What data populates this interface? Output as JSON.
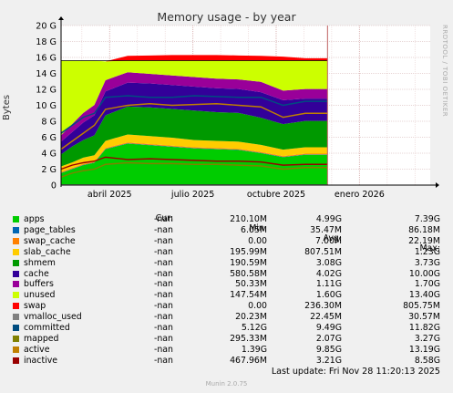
{
  "chart_data": {
    "type": "area",
    "title": "Memory usage - by year",
    "ylabel": "Bytes",
    "side_label": "RRDTOOL / TOBI OETIKER",
    "ylim": [
      0,
      20
    ],
    "yticks": [
      "0",
      "2 G",
      "4 G",
      "6 G",
      "8 G",
      "10 G",
      "12 G",
      "14 G",
      "16 G",
      "18 G",
      "20 G"
    ],
    "xticks": [
      {
        "label": "abril 2025",
        "month": 1.75
      },
      {
        "label": "julio 2025",
        "month": 4.75
      },
      {
        "label": "octubre 2025",
        "month": 7.75
      },
      {
        "label": "enero 2026",
        "month": 10.75
      }
    ],
    "x_range_months": [
      0,
      13.3
    ],
    "data_end_month": 9.6,
    "total_memory_line": 15.6,
    "series_stack": [
      {
        "name": "apps",
        "color": "#00cc00",
        "values": [
          1.5,
          2.0,
          2.5,
          2.8,
          4.5,
          5.2,
          5.0,
          4.8,
          4.6,
          4.5,
          4.4,
          4.0,
          3.5,
          3.8
        ]
      },
      {
        "name": "page_tables",
        "color": "#0066b3",
        "values": [
          0.05,
          0.05,
          0.05,
          0.05,
          0.05,
          0.05,
          0.05,
          0.05,
          0.05,
          0.05,
          0.05,
          0.05,
          0.05,
          0.05
        ]
      },
      {
        "name": "swap_cache",
        "color": "#ff8000",
        "values": [
          0.1,
          0.1,
          0.1,
          0.1,
          0.1,
          0.1,
          0.1,
          0.1,
          0.1,
          0.1,
          0.1,
          0.1,
          0.1,
          0.1
        ]
      },
      {
        "name": "slab_cache",
        "color": "#ffcc00",
        "values": [
          0.7,
          0.7,
          0.8,
          0.8,
          0.9,
          1.0,
          1.0,
          1.0,
          0.9,
          0.9,
          0.9,
          0.9,
          0.8,
          0.8
        ]
      },
      {
        "name": "shmem",
        "color": "#009900",
        "values": [
          1.5,
          2.0,
          2.2,
          2.5,
          3.2,
          3.5,
          3.6,
          3.6,
          3.7,
          3.6,
          3.6,
          3.4,
          3.2,
          3.3
        ]
      },
      {
        "name": "cache",
        "color": "#330099",
        "values": [
          1.6,
          1.8,
          2.2,
          2.5,
          3.0,
          3.0,
          3.0,
          3.0,
          3.0,
          3.0,
          3.0,
          3.2,
          3.0,
          2.8
        ]
      },
      {
        "name": "buffers",
        "color": "#990099",
        "values": [
          0.8,
          1.0,
          1.2,
          1.3,
          1.4,
          1.3,
          1.2,
          1.2,
          1.2,
          1.2,
          1.2,
          1.3,
          1.2,
          1.2
        ]
      },
      {
        "name": "unused",
        "color": "#ccff00",
        "values": [
          9.35,
          7.95,
          6.55,
          5.55,
          2.35,
          1.45,
          1.65,
          1.85,
          2.05,
          2.25,
          2.35,
          2.65,
          3.75,
          3.55
        ]
      }
    ],
    "x_sample_months": [
      0,
      0.4,
      0.8,
      1.2,
      1.6,
      2.4,
      3.2,
      4.0,
      4.8,
      5.6,
      6.4,
      7.2,
      8.0,
      8.8
    ],
    "swap": {
      "name": "swap",
      "color": "#ff0000",
      "values": [
        0,
        0,
        0,
        0,
        0,
        0.6,
        0.65,
        0.7,
        0.7,
        0.7,
        0.65,
        0.6,
        0.5,
        0.3
      ]
    },
    "line_series": [
      {
        "name": "vmalloc_used",
        "color": "#808080",
        "values": [
          0.02,
          0.02,
          0.02,
          0.02,
          0.02,
          0.02,
          0.02,
          0.02,
          0.02,
          0.02,
          0.02,
          0.02,
          0.02,
          0.02
        ]
      },
      {
        "name": "committed",
        "color": "#004d80",
        "values": [
          6.5,
          7.5,
          8.5,
          9.0,
          11.0,
          11.2,
          11.0,
          11.0,
          11.2,
          11.1,
          11.0,
          11.0,
          10.0,
          10.5
        ]
      },
      {
        "name": "mapped",
        "color": "#808000",
        "values": [
          1.0,
          1.5,
          1.8,
          2.0,
          2.6,
          2.8,
          2.7,
          2.7,
          2.6,
          2.6,
          2.5,
          2.4,
          2.0,
          2.2
        ]
      },
      {
        "name": "active",
        "color": "#c08000",
        "values": [
          4.5,
          5.5,
          6.5,
          7.5,
          9.5,
          10.0,
          10.2,
          10.0,
          10.1,
          10.2,
          10.0,
          9.8,
          8.5,
          9.0
        ]
      },
      {
        "name": "inactive",
        "color": "#990000",
        "values": [
          2.0,
          2.5,
          2.8,
          3.0,
          3.5,
          3.2,
          3.3,
          3.2,
          3.1,
          3.0,
          3.0,
          2.9,
          2.5,
          2.6
        ]
      }
    ]
  },
  "legend": {
    "headers": {
      "cur": "Cur:",
      "min": "Min:",
      "avg": "Avg:",
      "max": "Max:"
    },
    "rows": [
      {
        "name": "apps",
        "color": "#00cc00",
        "cur": "-nan",
        "min": "210.10M",
        "avg": "4.99G",
        "max": "7.39G"
      },
      {
        "name": "page_tables",
        "color": "#0066b3",
        "cur": "-nan",
        "min": "6.05M",
        "avg": "35.47M",
        "max": "86.18M"
      },
      {
        "name": "swap_cache",
        "color": "#ff8000",
        "cur": "-nan",
        "min": "0.00",
        "avg": "7.00M",
        "max": "22.19M"
      },
      {
        "name": "slab_cache",
        "color": "#ffcc00",
        "cur": "-nan",
        "min": "195.99M",
        "avg": "807.51M",
        "max": "1.23G"
      },
      {
        "name": "shmem",
        "color": "#009900",
        "cur": "-nan",
        "min": "190.59M",
        "avg": "3.08G",
        "max": "3.73G"
      },
      {
        "name": "cache",
        "color": "#330099",
        "cur": "-nan",
        "min": "580.58M",
        "avg": "4.02G",
        "max": "10.00G"
      },
      {
        "name": "buffers",
        "color": "#990099",
        "cur": "-nan",
        "min": "50.33M",
        "avg": "1.11G",
        "max": "1.70G"
      },
      {
        "name": "unused",
        "color": "#ccff00",
        "cur": "-nan",
        "min": "147.54M",
        "avg": "1.60G",
        "max": "13.40G"
      },
      {
        "name": "swap",
        "color": "#ff0000",
        "cur": "-nan",
        "min": "0.00",
        "avg": "236.30M",
        "max": "805.75M"
      },
      {
        "name": "vmalloc_used",
        "color": "#808080",
        "cur": "-nan",
        "min": "20.23M",
        "avg": "22.45M",
        "max": "30.57M"
      },
      {
        "name": "committed",
        "color": "#004d80",
        "cur": "-nan",
        "min": "5.12G",
        "avg": "9.49G",
        "max": "11.82G"
      },
      {
        "name": "mapped",
        "color": "#808000",
        "cur": "-nan",
        "min": "295.33M",
        "avg": "2.07G",
        "max": "3.27G"
      },
      {
        "name": "active",
        "color": "#c08000",
        "cur": "-nan",
        "min": "1.39G",
        "avg": "9.85G",
        "max": "13.19G"
      },
      {
        "name": "inactive",
        "color": "#990000",
        "cur": "-nan",
        "min": "467.96M",
        "avg": "3.21G",
        "max": "8.58G"
      }
    ]
  },
  "last_update": "Last update: Fri Nov 28 11:20:13 2025",
  "footer": "Munin 2.0.75"
}
